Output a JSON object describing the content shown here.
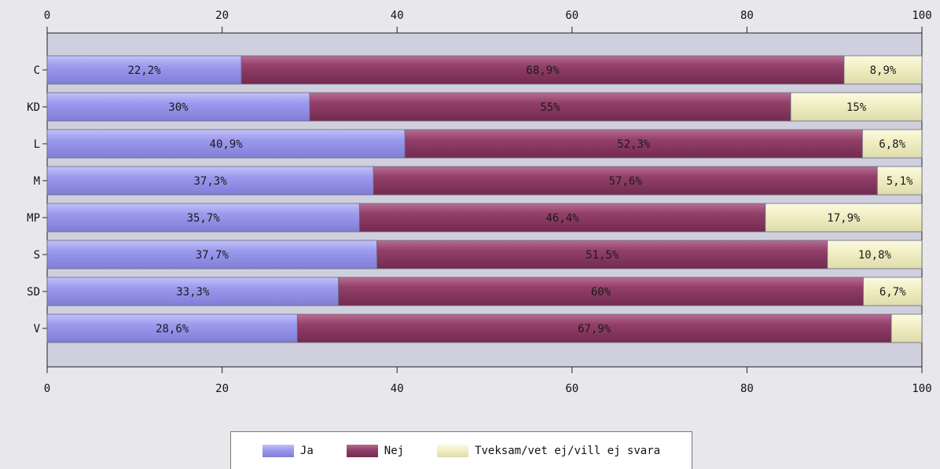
{
  "chart_data": {
    "type": "bar",
    "orientation": "horizontal",
    "stacked": true,
    "categories": [
      "C",
      "KD",
      "L",
      "M",
      "MP",
      "S",
      "SD",
      "V"
    ],
    "series": [
      {
        "name": "Ja",
        "color": "#9a98ea",
        "values": [
          22.2,
          30,
          40.9,
          37.3,
          35.7,
          37.7,
          33.3,
          28.6
        ],
        "labels": [
          "22,2%",
          "30%",
          "40,9%",
          "37,3%",
          "35,7%",
          "37,7%",
          "33,3%",
          "28,6%"
        ]
      },
      {
        "name": "Nej",
        "color": "#8e3a62",
        "values": [
          68.9,
          55,
          52.3,
          57.6,
          46.4,
          51.5,
          60,
          67.9
        ],
        "labels": [
          "68,9%",
          "55%",
          "52,3%",
          "57,6%",
          "46,4%",
          "51,5%",
          "60%",
          "67,9%"
        ]
      },
      {
        "name": "Tveksam/vet ej/vill ej svara",
        "color": "#f2f0c4",
        "values": [
          8.9,
          15,
          6.8,
          5.1,
          17.9,
          10.8,
          6.7,
          3.5
        ],
        "labels": [
          "8,9%",
          "15%",
          "6,8%",
          "5,1%",
          "17,9%",
          "10,8%",
          "6,7%",
          ""
        ]
      }
    ],
    "xlim": [
      0,
      100
    ],
    "xticks": [
      "0",
      "20",
      "40",
      "60",
      "80",
      "100"
    ],
    "legend_position": "bottom"
  }
}
